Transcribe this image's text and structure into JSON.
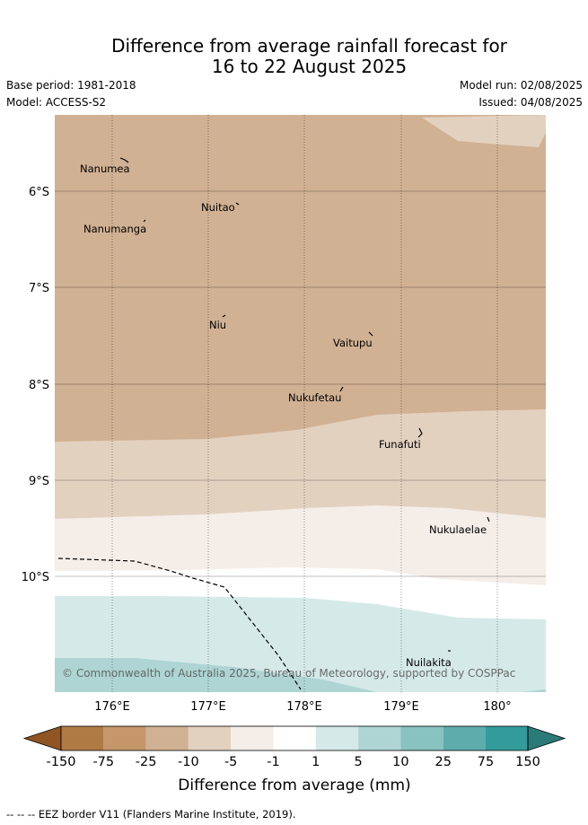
{
  "title_line1": "Difference from average rainfall forecast for",
  "title_line2": "16 to 22 August 2025",
  "base_period": "Base period: 1981-2018",
  "model": "Model: ACCESS-S2",
  "model_run": "Model run: 02/08/2025",
  "issued": "Issued: 04/08/2025",
  "map": {
    "lat_labels": [
      "6°S",
      "7°S",
      "8°S",
      "9°S",
      "10°S"
    ],
    "lon_labels": [
      "176°E",
      "177°E",
      "178°E",
      "179°E",
      "180°"
    ],
    "places": [
      {
        "name": "Nanumea"
      },
      {
        "name": "Nuitao"
      },
      {
        "name": "Nanumanga"
      },
      {
        "name": "Niu"
      },
      {
        "name": "Vaitupu"
      },
      {
        "name": "Nukufetau"
      },
      {
        "name": "Funafuti"
      },
      {
        "name": "Nukulaelae"
      },
      {
        "name": "Nuilakita"
      }
    ],
    "copyright": "© Commonwealth of Australia 2025, Bureau of Meteorology, supported by COSPPac"
  },
  "colorbar": {
    "tick_labels": [
      "-150",
      "-75",
      "-25",
      "-10",
      "-5",
      "-1",
      "1",
      "5",
      "10",
      "25",
      "75",
      "150"
    ],
    "colors": [
      "#8f5522",
      "#b07a44",
      "#c4966a",
      "#d1b193",
      "#e3d1c0",
      "#f5ede8",
      "#ffffff",
      "#d5e9e8",
      "#aed5d4",
      "#88c2c1",
      "#5eadac",
      "#339b99",
      "#2a7a78"
    ],
    "label": "Difference from average (mm)"
  },
  "footnote": "--  --  -- EEZ border V11 (Flanders Marine Institute, 2019)."
}
